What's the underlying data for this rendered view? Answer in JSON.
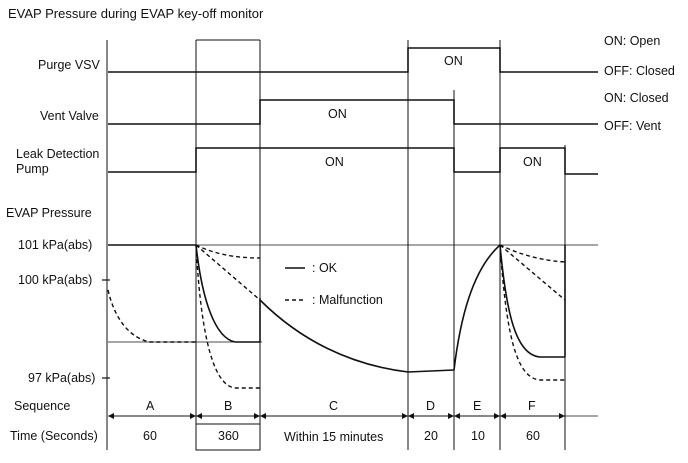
{
  "title": "EVAP Pressure during EVAP key-off monitor",
  "signals": {
    "purge_vsv": "Purge VSV",
    "vent_valve": "Vent Valve",
    "leak_pump_line1": "Leak Detection",
    "leak_pump_line2": "Pump",
    "evap_pressure": "EVAP Pressure"
  },
  "states": {
    "purge_on": "ON: Open",
    "purge_off": "OFF: Closed",
    "vent_on": "ON: Closed",
    "vent_off": "OFF: Vent",
    "on": "ON"
  },
  "pressure_labels": {
    "p101": "101 kPa(abs)",
    "p100": "100 kPa(abs)",
    "p97": "97 kPa(abs)"
  },
  "legend": {
    "ok": ": OK",
    "malfunction": ": Malfunction"
  },
  "sequence": {
    "label": "Sequence",
    "items": [
      "A",
      "B",
      "C",
      "D",
      "E",
      "F"
    ]
  },
  "time": {
    "label": "Time (Seconds)",
    "items": [
      "60",
      "360",
      "Within 15 minutes",
      "20",
      "10",
      "60"
    ]
  }
}
